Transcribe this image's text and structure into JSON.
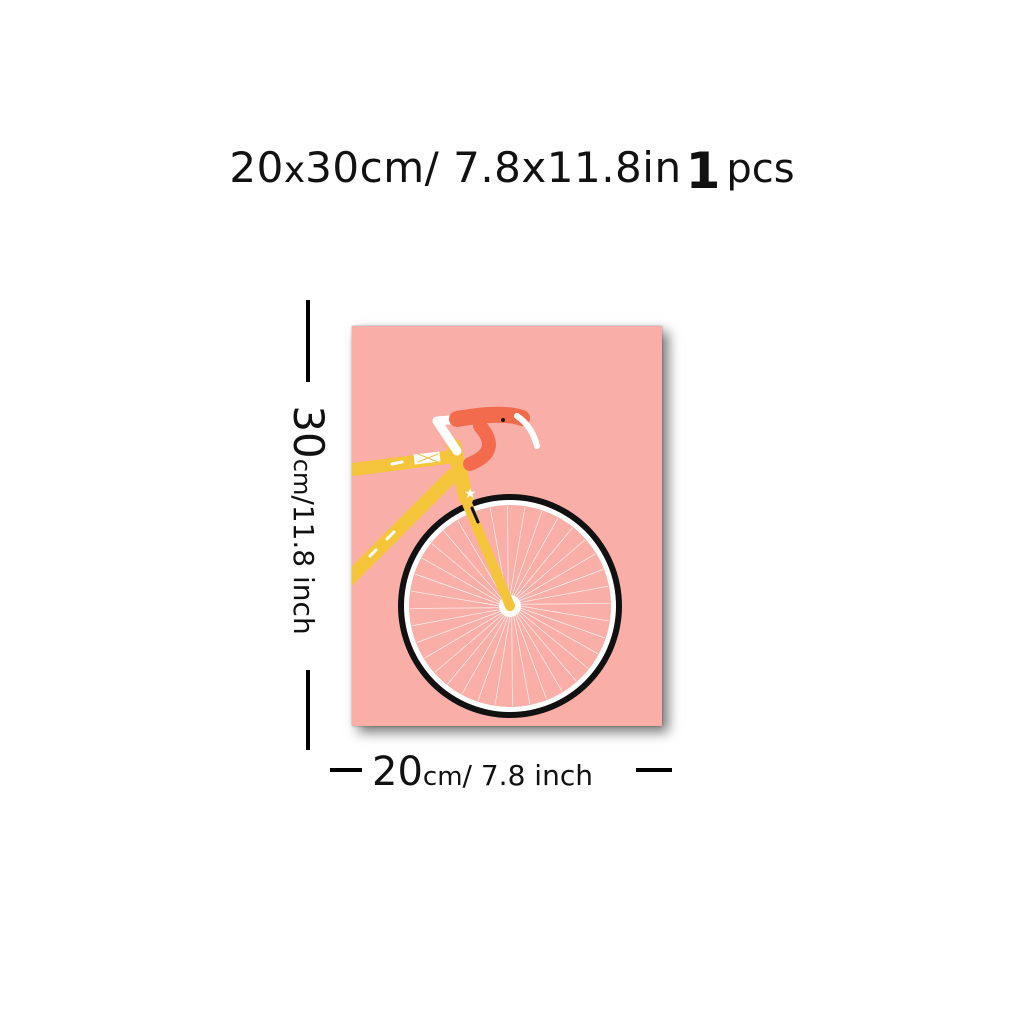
{
  "title": {
    "width_size": "20",
    "x_sep": "x",
    "height_cm": "30cm/ 7.8x11.8in",
    "quantity": "1",
    "quantity_unit": "pcs"
  },
  "height_label": {
    "value": "30",
    "unit": "cm",
    "rest": "/11.8 inch"
  },
  "width_label": {
    "value": "20",
    "unit": "cm",
    "rest": "/ 7.8 inch"
  },
  "poster": {
    "background_color": "#f9aea7",
    "frame_color": "#f4c53a",
    "handlebar_color": "#f26b4d",
    "wheel_tire_color": "#111111",
    "wheel_rim_color": "#ffffff"
  }
}
